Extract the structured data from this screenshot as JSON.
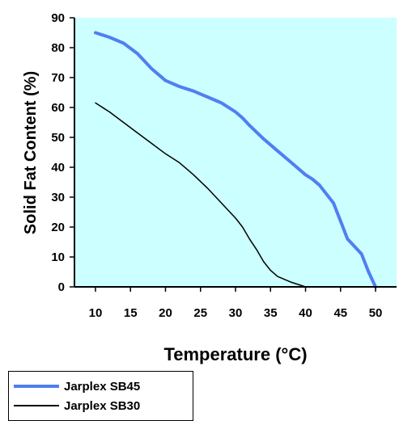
{
  "chart_data": {
    "type": "line",
    "title": "",
    "xlabel": "Temperature (°C)",
    "ylabel": "Solid Fat Content (%)",
    "xlim": [
      7,
      53
    ],
    "ylim": [
      0,
      90
    ],
    "x_ticks": [
      10,
      15,
      20,
      25,
      30,
      35,
      40,
      45,
      50
    ],
    "y_ticks": [
      0,
      10,
      20,
      30,
      40,
      50,
      60,
      70,
      80,
      90
    ],
    "grid": false,
    "plot_background": "#ccffff",
    "legend_position": "bottom-left",
    "series": [
      {
        "name": "Jarplex SB45",
        "color": "#4f7ff0",
        "line_width": 4,
        "x": [
          10,
          12,
          14,
          16,
          18,
          20,
          22,
          24,
          26,
          28,
          30,
          31,
          32,
          34,
          36,
          38,
          40,
          41,
          42,
          44,
          45,
          46,
          48,
          49,
          50
        ],
        "y": [
          85,
          83.5,
          81.5,
          78,
          73,
          69,
          67,
          65.5,
          63.5,
          61.5,
          58.5,
          56.5,
          54,
          49.5,
          45.5,
          41.5,
          37.5,
          36,
          34,
          28,
          22,
          16,
          11,
          5,
          0
        ]
      },
      {
        "name": "Jarplex SB30",
        "color": "#000000",
        "line_width": 1.5,
        "x": [
          10,
          12,
          14,
          16,
          18,
          20,
          22,
          24,
          26,
          28,
          30,
          31,
          32,
          33,
          34,
          35,
          36,
          38,
          40
        ],
        "y": [
          61.5,
          58.5,
          55,
          51.5,
          48,
          44.5,
          41.5,
          37.5,
          33,
          28,
          23,
          20,
          16,
          12.5,
          8.5,
          5.5,
          3.5,
          1.5,
          0
        ]
      }
    ]
  }
}
